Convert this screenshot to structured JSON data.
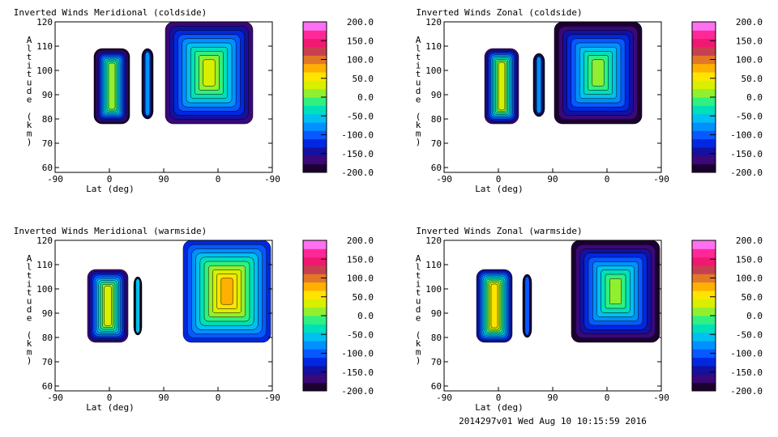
{
  "footer": "2014297v01 Wed Aug 10 10:15:59 2016",
  "colorbar": {
    "ticks": [
      "200.0",
      "150.0",
      "100.0",
      "50.0",
      "0.0",
      "-50.0",
      "-100.0",
      "-150.0",
      "-200.0"
    ],
    "colors": [
      "#1c0030",
      "#3a0878",
      "#1410a0",
      "#0028e0",
      "#0858ff",
      "#0090ff",
      "#00c0f0",
      "#00e0b8",
      "#30f080",
      "#90f030",
      "#d8f000",
      "#ffe400",
      "#ffb000",
      "#e07828",
      "#c84050",
      "#f01870",
      "#ff2898",
      "#ff70f0"
    ]
  },
  "chart_data": [
    {
      "type": "heatmap",
      "title": "Inverted Winds Meridional (coldside)",
      "xlabel": "Lat (deg)",
      "ylabel": "Altitude (km)",
      "xticks": [
        "-90",
        "0",
        "90",
        "0",
        "-90"
      ],
      "yticks": [
        "60",
        "70",
        "80",
        "90",
        "100",
        "110",
        "120"
      ],
      "ylim": [
        58,
        120
      ],
      "zlim": [
        -200,
        200
      ]
    },
    {
      "type": "heatmap",
      "title": "Inverted Winds Zonal (coldside)",
      "xlabel": "Lat (deg)",
      "ylabel": "Altitude (km)",
      "xticks": [
        "-90",
        "0",
        "90",
        "0",
        "-90"
      ],
      "yticks": [
        "60",
        "70",
        "80",
        "90",
        "100",
        "110",
        "120"
      ],
      "ylim": [
        58,
        120
      ],
      "zlim": [
        -200,
        200
      ]
    },
    {
      "type": "heatmap",
      "title": "Inverted Winds Meridional (warmside)",
      "xlabel": "Lat (deg)",
      "ylabel": "Altitude (km)",
      "xticks": [
        "-90",
        "0",
        "90",
        "0",
        "-90"
      ],
      "yticks": [
        "60",
        "70",
        "80",
        "90",
        "100",
        "110",
        "120"
      ],
      "ylim": [
        58,
        120
      ],
      "zlim": [
        -200,
        200
      ]
    },
    {
      "type": "heatmap",
      "title": "Inverted Winds Zonal (warmside)",
      "xlabel": "Lat (deg)",
      "ylabel": "Altitude (km)",
      "xticks": [
        "-90",
        "0",
        "90",
        "0",
        "-90"
      ],
      "yticks": [
        "60",
        "70",
        "80",
        "90",
        "100",
        "110",
        "120"
      ],
      "ylim": [
        58,
        120
      ],
      "zlim": [
        -200,
        200
      ]
    }
  ]
}
